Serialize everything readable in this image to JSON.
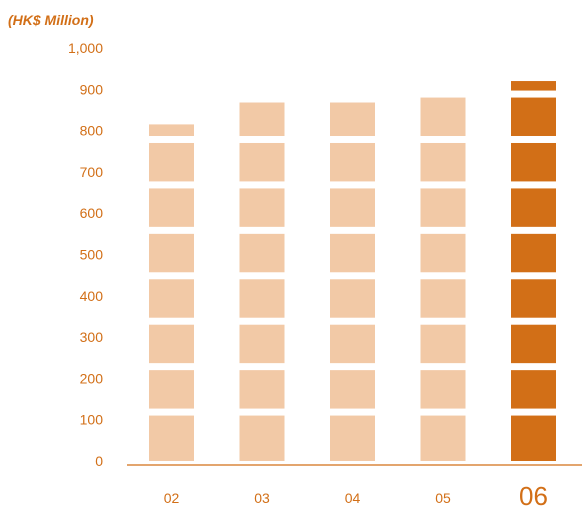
{
  "chart_data": {
    "type": "bar",
    "unit_label": "(HK$ Million)",
    "categories": [
      "02",
      "03",
      "04",
      "05",
      "06"
    ],
    "highlight_category": "06",
    "values": [
      815,
      868,
      868,
      895,
      920
    ],
    "ylim": [
      0,
      1000
    ],
    "yticks": [
      0,
      100,
      200,
      300,
      400,
      500,
      600,
      700,
      800,
      900,
      1000
    ],
    "ytick_labels": [
      "0",
      "100",
      "200",
      "300",
      "400",
      "500",
      "600",
      "700",
      "800",
      "900",
      "1,000"
    ],
    "segment_step": 110,
    "grid": false,
    "colors": {
      "bar": "#f2c9a6",
      "bar_highlight": "#d26f17",
      "text": "#d26f17",
      "axis": "#d26f17"
    }
  }
}
